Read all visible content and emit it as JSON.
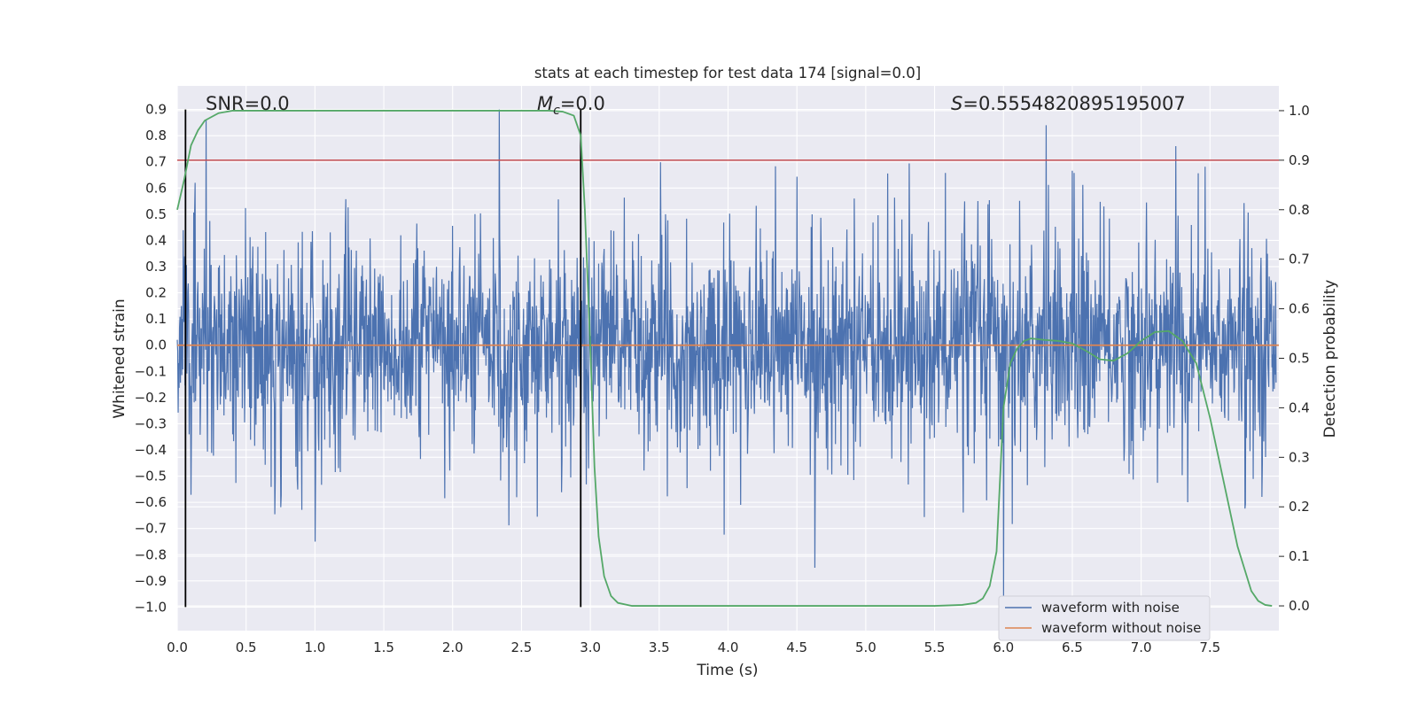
{
  "chart_data": {
    "type": "line",
    "title": "stats at each timestep for test data 174 [signal=0.0]",
    "xlabel": "Time (s)",
    "ylabel_left": "Whitened strain",
    "ylabel_right": "Detection probability",
    "xlim": [
      0.0,
      8.0
    ],
    "ylim_left": [
      -1.09,
      0.99
    ],
    "ylim_right": [
      -0.05,
      1.05
    ],
    "xticks": [
      "0.0",
      "0.5",
      "1.0",
      "1.5",
      "2.0",
      "2.5",
      "3.0",
      "3.5",
      "4.0",
      "4.5",
      "5.0",
      "5.5",
      "6.0",
      "6.5",
      "7.0",
      "7.5"
    ],
    "yticks_left": [
      "0.9",
      "0.8",
      "0.7",
      "0.6",
      "0.5",
      "0.4",
      "0.3",
      "0.2",
      "0.1",
      "0.0",
      "−0.1",
      "−0.2",
      "−0.3",
      "−0.4",
      "−0.5",
      "−0.6",
      "−0.7",
      "−0.8",
      "−0.9",
      "−1.0"
    ],
    "yticks_right": [
      "1.0",
      "0.9",
      "0.8",
      "0.7",
      "0.6",
      "0.5",
      "0.4",
      "0.3",
      "0.2",
      "0.1",
      "0.0"
    ],
    "grid": true,
    "annotations": {
      "snr": "SNR=0.0",
      "mc_symbol": "M",
      "mc_sub": "c",
      "mc_value": "=0.0",
      "s_symbol": "S",
      "s_value": "=0.5554820895195007"
    },
    "threshold": 0.9,
    "vertical_markers": [
      0.06,
      2.93
    ],
    "series": [
      {
        "name": "waveform with noise",
        "color": "#4c72b0",
        "axis": "left",
        "approx_envelope_max": 0.9,
        "approx_envelope_min": -0.97,
        "approx_typical_amplitude": 0.35,
        "notable_spikes": [
          {
            "x": 0.21,
            "y": 0.86
          },
          {
            "x": 2.34,
            "y": 0.9
          },
          {
            "x": 6.31,
            "y": 0.84
          },
          {
            "x": 7.25,
            "y": 0.76
          },
          {
            "x": 1.0,
            "y": -0.75
          },
          {
            "x": 4.63,
            "y": -0.85
          },
          {
            "x": 6.0,
            "y": -0.97
          }
        ]
      },
      {
        "name": "waveform without noise",
        "color": "#dd8452",
        "axis": "left",
        "x": [
          0.0,
          8.0
        ],
        "y": [
          0.0,
          0.0
        ]
      },
      {
        "name": "detection probability",
        "color": "#55a868",
        "axis": "right",
        "x": [
          0.0,
          0.05,
          0.1,
          0.15,
          0.2,
          0.3,
          0.4,
          0.5,
          1.0,
          1.5,
          2.0,
          2.5,
          2.7,
          2.8,
          2.88,
          2.93,
          2.96,
          3.0,
          3.03,
          3.06,
          3.1,
          3.15,
          3.2,
          3.3,
          4.0,
          5.0,
          5.5,
          5.7,
          5.8,
          5.85,
          5.9,
          5.95,
          6.0,
          6.05,
          6.1,
          6.15,
          6.2,
          6.3,
          6.4,
          6.5,
          6.6,
          6.7,
          6.8,
          6.9,
          7.0,
          7.1,
          7.2,
          7.3,
          7.4,
          7.5,
          7.6,
          7.7,
          7.8,
          7.85,
          7.9,
          7.95
        ],
        "y": [
          0.8,
          0.86,
          0.93,
          0.96,
          0.98,
          0.995,
          1.0,
          1.0,
          1.0,
          1.0,
          1.0,
          1.0,
          1.0,
          0.998,
          0.99,
          0.95,
          0.8,
          0.52,
          0.28,
          0.14,
          0.06,
          0.02,
          0.006,
          0.0,
          0.0,
          0.0,
          0.0,
          0.002,
          0.006,
          0.015,
          0.04,
          0.11,
          0.4,
          0.49,
          0.52,
          0.535,
          0.54,
          0.537,
          0.535,
          0.53,
          0.515,
          0.498,
          0.495,
          0.51,
          0.535,
          0.553,
          0.555,
          0.535,
          0.49,
          0.38,
          0.25,
          0.12,
          0.03,
          0.01,
          0.002,
          0.0
        ]
      }
    ],
    "legend": {
      "placement": "lower-right",
      "entries": [
        {
          "label": "waveform with noise",
          "color": "#4c72b0"
        },
        {
          "label": "waveform without noise",
          "color": "#dd8452"
        }
      ]
    },
    "colors": {
      "plot_background": "#eaeaf2",
      "grid": "#ffffff",
      "threshold_line": "#c44e52",
      "marker_line": "#000000",
      "probability_line": "#55a868"
    }
  }
}
